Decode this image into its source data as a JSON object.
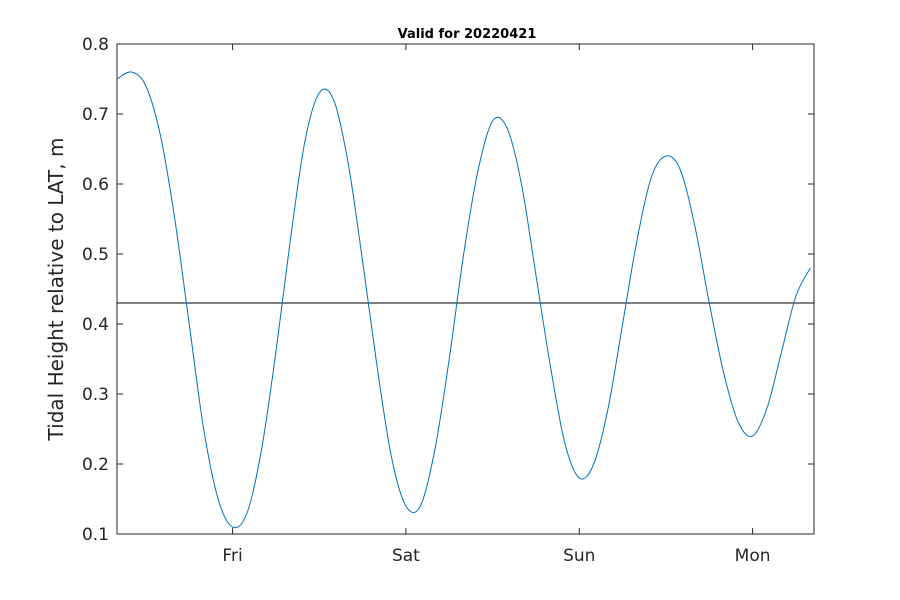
{
  "chart_data": {
    "type": "line",
    "title": "Valid for 20220421",
    "xlabel": "",
    "ylabel": "Tidal Height relative to LAT, m",
    "ylim": [
      0.1,
      0.8
    ],
    "yticks": [
      0.1,
      0.2,
      0.3,
      0.4,
      0.5,
      0.6,
      0.7,
      0.8
    ],
    "ytick_labels": [
      "0.1",
      "0.2",
      "0.3",
      "0.4",
      "0.5",
      "0.6",
      "0.7",
      "0.8"
    ],
    "xlim_hours": [
      -16,
      80.5
    ],
    "xticks_hours": [
      0,
      24,
      48,
      72
    ],
    "xtick_labels": [
      "Fri",
      "Sat",
      "Sun",
      "Mon"
    ],
    "grid": false,
    "reference_line": {
      "y": 0.43,
      "color": "#000000"
    },
    "series": [
      {
        "color": "#0072BD",
        "x_hours": [
          -16,
          -14,
          -12,
          -10,
          -8,
          -6,
          -4,
          -2,
          0,
          2,
          4,
          6,
          8,
          10,
          12,
          14,
          16,
          18,
          20,
          22,
          24,
          26,
          28,
          30,
          32,
          34,
          36,
          38,
          40,
          42,
          44,
          46,
          48,
          50,
          52,
          54,
          56,
          58,
          60,
          62,
          64,
          66,
          68,
          70,
          72,
          74,
          76,
          78,
          80
        ],
        "y": [
          0.75,
          0.76,
          0.74,
          0.67,
          0.55,
          0.4,
          0.25,
          0.15,
          0.11,
          0.13,
          0.22,
          0.36,
          0.52,
          0.66,
          0.73,
          0.72,
          0.63,
          0.49,
          0.34,
          0.21,
          0.14,
          0.14,
          0.22,
          0.35,
          0.5,
          0.62,
          0.69,
          0.68,
          0.6,
          0.47,
          0.34,
          0.23,
          0.18,
          0.2,
          0.28,
          0.4,
          0.52,
          0.61,
          0.64,
          0.62,
          0.54,
          0.43,
          0.33,
          0.26,
          0.24,
          0.28,
          0.36,
          0.44,
          0.48
        ]
      }
    ]
  },
  "colors": {
    "axis": "#262626",
    "line": "#0072BD",
    "reference": "#000000"
  }
}
